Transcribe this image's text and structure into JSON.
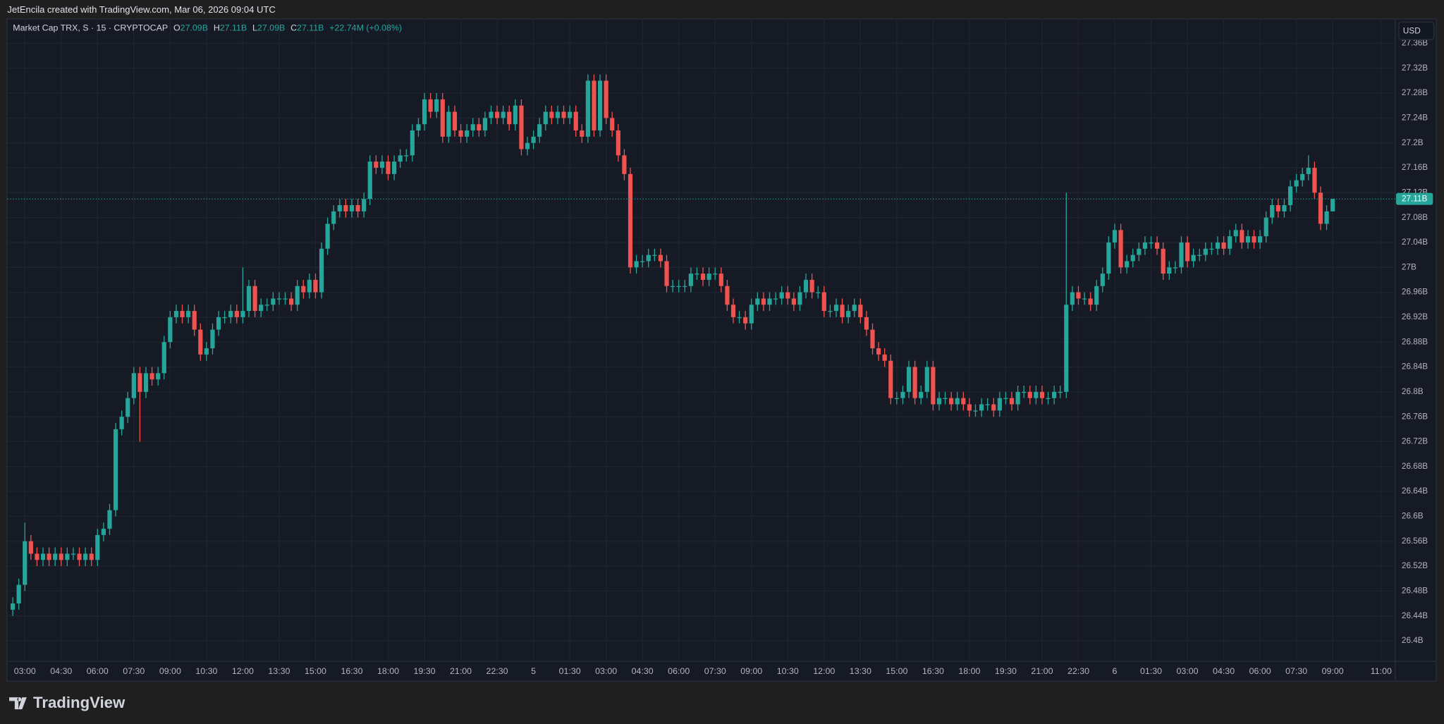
{
  "attribution": "JetEncila created with TradingView.com, Mar 06, 2026 09:04 UTC",
  "footer": {
    "brand": "TradingView"
  },
  "chart_data": {
    "type": "candlestick",
    "legend": {
      "title": "Market Cap TRX, S · 15 · CRYPTOCAP",
      "open_label": "O",
      "open": "27.09B",
      "high_label": "H",
      "high": "27.11B",
      "low_label": "L",
      "low": "27.09B",
      "close_label": "C",
      "close": "27.11B",
      "change": "+22.74M (+0.08%)"
    },
    "currency": "USD",
    "up_color": "#26a69a",
    "down_color": "#ef5350",
    "grid": true,
    "last_price": {
      "value": 27.11,
      "label": "27.11B"
    },
    "xlim": [
      2.278,
      59.58
    ],
    "ylim": [
      26.367,
      27.4
    ],
    "yticks": [
      {
        "value": 27.36,
        "label": "27.36B"
      },
      {
        "value": 27.32,
        "label": "27.32B"
      },
      {
        "value": 27.28,
        "label": "27.28B"
      },
      {
        "value": 27.24,
        "label": "27.24B"
      },
      {
        "value": 27.2,
        "label": "27.2B"
      },
      {
        "value": 27.16,
        "label": "27.16B"
      },
      {
        "value": 27.12,
        "label": "27.12B"
      },
      {
        "value": 27.08,
        "label": "27.08B"
      },
      {
        "value": 27.04,
        "label": "27.04B"
      },
      {
        "value": 27,
        "label": "27B"
      },
      {
        "value": 26.96,
        "label": "26.96B"
      },
      {
        "value": 26.92,
        "label": "26.92B"
      },
      {
        "value": 26.88,
        "label": "26.88B"
      },
      {
        "value": 26.84,
        "label": "26.84B"
      },
      {
        "value": 26.8,
        "label": "26.8B"
      },
      {
        "value": 26.76,
        "label": "26.76B"
      },
      {
        "value": 26.72,
        "label": "26.72B"
      },
      {
        "value": 26.68,
        "label": "26.68B"
      },
      {
        "value": 26.64,
        "label": "26.64B"
      },
      {
        "value": 26.6,
        "label": "26.6B"
      },
      {
        "value": 26.56,
        "label": "26.56B"
      },
      {
        "value": 26.52,
        "label": "26.52B"
      },
      {
        "value": 26.48,
        "label": "26.48B"
      },
      {
        "value": 26.44,
        "label": "26.44B"
      },
      {
        "value": 26.4,
        "label": "26.4B"
      }
    ],
    "xticks": [
      {
        "value": 3,
        "label": "03:00"
      },
      {
        "value": 4.5,
        "label": "04:30"
      },
      {
        "value": 6,
        "label": "06:00"
      },
      {
        "value": 7.5,
        "label": "07:30"
      },
      {
        "value": 9,
        "label": "09:00"
      },
      {
        "value": 10.5,
        "label": "10:30"
      },
      {
        "value": 12,
        "label": "12:00"
      },
      {
        "value": 13.5,
        "label": "13:30"
      },
      {
        "value": 15,
        "label": "15:00"
      },
      {
        "value": 16.5,
        "label": "16:30"
      },
      {
        "value": 18,
        "label": "18:00"
      },
      {
        "value": 19.5,
        "label": "19:30"
      },
      {
        "value": 21,
        "label": "21:00"
      },
      {
        "value": 22.5,
        "label": "22:30"
      },
      {
        "value": 24,
        "label": "5"
      },
      {
        "value": 25.5,
        "label": "01:30"
      },
      {
        "value": 27,
        "label": "03:00"
      },
      {
        "value": 28.5,
        "label": "04:30"
      },
      {
        "value": 30,
        "label": "06:00"
      },
      {
        "value": 31.5,
        "label": "07:30"
      },
      {
        "value": 33,
        "label": "09:00"
      },
      {
        "value": 34.5,
        "label": "10:30"
      },
      {
        "value": 36,
        "label": "12:00"
      },
      {
        "value": 37.5,
        "label": "13:30"
      },
      {
        "value": 39,
        "label": "15:00"
      },
      {
        "value": 40.5,
        "label": "16:30"
      },
      {
        "value": 42,
        "label": "18:00"
      },
      {
        "value": 43.5,
        "label": "19:30"
      },
      {
        "value": 45,
        "label": "21:00"
      },
      {
        "value": 46.5,
        "label": "22:30"
      },
      {
        "value": 48,
        "label": "6"
      },
      {
        "value": 49.5,
        "label": "01:30"
      },
      {
        "value": 51,
        "label": "03:00"
      },
      {
        "value": 52.5,
        "label": "04:30"
      },
      {
        "value": 54,
        "label": "06:00"
      },
      {
        "value": 55.5,
        "label": "07:30"
      },
      {
        "value": 57,
        "label": "09:00"
      },
      {
        "value": 59,
        "label": "11:00"
      }
    ],
    "x": [
      2.5,
      2.75,
      3,
      3.25,
      3.5,
      3.75,
      4,
      4.25,
      4.5,
      4.75,
      5,
      5.25,
      5.5,
      5.75,
      6,
      6.25,
      6.5,
      6.75,
      7,
      7.25,
      7.5,
      7.75,
      8,
      8.25,
      8.5,
      8.75,
      9,
      9.25,
      9.5,
      9.75,
      10,
      10.25,
      10.5,
      10.75,
      11,
      11.25,
      11.5,
      11.75,
      12,
      12.25,
      12.5,
      12.75,
      13,
      13.25,
      13.5,
      13.75,
      14,
      14.25,
      14.5,
      14.75,
      15,
      15.25,
      15.5,
      15.75,
      16,
      16.25,
      16.5,
      16.75,
      17,
      17.25,
      17.5,
      17.75,
      18,
      18.25,
      18.5,
      18.75,
      19,
      19.25,
      19.5,
      19.75,
      20,
      20.25,
      20.5,
      20.75,
      21,
      21.25,
      21.5,
      21.75,
      22,
      22.25,
      22.5,
      22.75,
      23,
      23.25,
      23.5,
      23.75,
      24,
      24.25,
      24.5,
      24.75,
      25,
      25.25,
      25.5,
      25.75,
      26,
      26.25,
      26.5,
      26.75,
      27,
      27.25,
      27.5,
      27.75,
      28,
      28.25,
      28.5,
      28.75,
      29,
      29.25,
      29.5,
      29.75,
      30,
      30.25,
      30.5,
      30.75,
      31,
      31.25,
      31.5,
      31.75,
      32,
      32.25,
      32.5,
      32.75,
      33,
      33.25,
      33.5,
      33.75,
      34,
      34.25,
      34.5,
      34.75,
      35,
      35.25,
      35.5,
      35.75,
      36,
      36.25,
      36.5,
      36.75,
      37,
      37.25,
      37.5,
      37.75,
      38,
      38.25,
      38.5,
      38.75,
      39,
      39.25,
      39.5,
      39.75,
      40,
      40.25,
      40.5,
      40.75,
      41,
      41.25,
      41.5,
      41.75,
      42,
      42.25,
      42.5,
      42.75,
      43,
      43.25,
      43.5,
      43.75,
      44,
      44.25,
      44.5,
      44.75,
      45,
      45.25,
      45.5,
      45.75,
      46,
      46.25,
      46.5,
      46.75,
      47,
      47.25,
      47.5,
      47.75,
      48,
      48.25,
      48.5,
      48.75,
      49,
      49.25,
      49.5,
      49.75,
      50,
      50.25,
      50.5,
      50.75,
      51,
      51.25,
      51.5,
      51.75,
      52,
      52.25,
      52.5,
      52.75,
      53,
      53.25,
      53.5,
      53.75,
      54,
      54.25,
      54.5,
      54.75,
      55,
      55.25,
      55.5,
      55.75,
      56,
      56.25,
      56.5,
      56.75,
      57
    ],
    "open": [
      26.45,
      26.46,
      26.49,
      26.56,
      26.54,
      26.53,
      26.54,
      26.53,
      26.54,
      26.53,
      26.54,
      26.54,
      26.53,
      26.54,
      26.53,
      26.57,
      26.58,
      26.61,
      26.74,
      26.76,
      26.79,
      26.83,
      26.8,
      26.83,
      26.82,
      26.83,
      26.88,
      26.92,
      26.93,
      26.92,
      26.93,
      26.9,
      26.86,
      26.87,
      26.9,
      26.92,
      26.92,
      26.93,
      26.92,
      26.93,
      26.97,
      26.93,
      26.94,
      26.94,
      26.95,
      26.95,
      26.95,
      26.94,
      26.97,
      26.96,
      26.98,
      26.96,
      27.03,
      27.07,
      27.09,
      27.1,
      27.09,
      27.1,
      27.09,
      27.11,
      27.17,
      27.16,
      27.17,
      27.15,
      27.17,
      27.18,
      27.18,
      27.22,
      27.23,
      27.27,
      27.25,
      27.27,
      27.21,
      27.25,
      27.22,
      27.21,
      27.22,
      27.23,
      27.22,
      27.24,
      27.25,
      27.24,
      27.25,
      27.23,
      27.26,
      27.19,
      27.2,
      27.21,
      27.23,
      27.25,
      27.24,
      27.25,
      27.24,
      27.25,
      27.22,
      27.21,
      27.3,
      27.22,
      27.3,
      27.24,
      27.22,
      27.18,
      27.15,
      27.0,
      27.01,
      27.01,
      27.02,
      27.02,
      27.01,
      26.97,
      26.97,
      26.97,
      26.97,
      26.99,
      26.99,
      26.98,
      26.99,
      26.99,
      26.97,
      26.94,
      26.92,
      26.92,
      26.91,
      26.94,
      26.95,
      26.94,
      26.95,
      26.95,
      26.96,
      26.95,
      26.94,
      26.96,
      26.98,
      26.96,
      26.96,
      26.93,
      26.93,
      26.94,
      26.92,
      26.93,
      26.94,
      26.92,
      26.9,
      26.87,
      26.86,
      26.85,
      26.79,
      26.79,
      26.8,
      26.84,
      26.79,
      26.8,
      26.84,
      26.78,
      26.79,
      26.79,
      26.78,
      26.79,
      26.78,
      26.77,
      26.77,
      26.78,
      26.78,
      26.77,
      26.79,
      26.79,
      26.78,
      26.8,
      26.8,
      26.79,
      26.8,
      26.79,
      26.79,
      26.8,
      26.8,
      26.94,
      26.96,
      26.95,
      26.95,
      26.94,
      26.97,
      26.99,
      27.04,
      27.06,
      27.0,
      27.01,
      27.02,
      27.03,
      27.04,
      27.04,
      27.03,
      26.99,
      27.0,
      27.0,
      27.04,
      27.01,
      27.02,
      27.02,
      27.03,
      27.03,
      27.04,
      27.03,
      27.05,
      27.06,
      27.04,
      27.05,
      27.04,
      27.05,
      27.08,
      27.1,
      27.09,
      27.1,
      27.13,
      27.14,
      27.15,
      27.16,
      27.12,
      27.07,
      27.09
    ],
    "high": [
      26.47,
      26.5,
      26.59,
      26.57,
      26.55,
      26.55,
      26.55,
      26.55,
      26.55,
      26.55,
      26.55,
      26.55,
      26.55,
      26.55,
      26.58,
      26.59,
      26.62,
      26.75,
      26.77,
      26.8,
      26.84,
      26.84,
      26.84,
      26.84,
      26.84,
      26.89,
      26.93,
      26.94,
      26.94,
      26.94,
      26.94,
      26.91,
      26.88,
      26.91,
      26.93,
      26.93,
      26.94,
      26.94,
      27.0,
      26.98,
      26.98,
      26.95,
      26.95,
      26.96,
      26.96,
      26.96,
      26.96,
      26.98,
      26.98,
      26.99,
      26.99,
      27.04,
      27.08,
      27.1,
      27.11,
      27.11,
      27.11,
      27.11,
      27.12,
      27.18,
      27.18,
      27.18,
      27.18,
      27.18,
      27.19,
      27.19,
      27.23,
      27.24,
      27.28,
      27.28,
      27.28,
      27.28,
      27.26,
      27.26,
      27.23,
      27.23,
      27.24,
      27.24,
      27.25,
      27.26,
      27.26,
      27.26,
      27.26,
      27.27,
      27.27,
      27.21,
      27.22,
      27.24,
      27.26,
      27.26,
      27.26,
      27.26,
      27.26,
      27.26,
      27.23,
      27.31,
      27.31,
      27.31,
      27.31,
      27.25,
      27.23,
      27.19,
      27.16,
      27.02,
      27.02,
      27.03,
      27.03,
      27.03,
      27.02,
      26.98,
      26.98,
      26.98,
      27.0,
      27.0,
      27.0,
      27.0,
      27.0,
      27.0,
      26.98,
      26.95,
      26.93,
      26.93,
      26.95,
      26.96,
      26.96,
      26.96,
      26.96,
      26.97,
      26.97,
      26.96,
      26.97,
      26.99,
      26.99,
      26.97,
      26.97,
      26.94,
      26.95,
      26.95,
      26.94,
      26.95,
      26.95,
      26.93,
      26.91,
      26.88,
      26.87,
      26.86,
      26.8,
      26.81,
      26.85,
      26.85,
      26.81,
      26.85,
      26.85,
      26.8,
      26.8,
      26.8,
      26.8,
      26.8,
      26.79,
      26.78,
      26.79,
      26.79,
      26.79,
      26.8,
      26.8,
      26.8,
      26.81,
      26.81,
      26.81,
      26.81,
      26.81,
      26.8,
      26.81,
      26.81,
      27.12,
      26.97,
      26.97,
      26.96,
      26.96,
      26.98,
      27.0,
      27.05,
      27.07,
      27.07,
      27.02,
      27.03,
      27.04,
      27.05,
      27.05,
      27.05,
      27.04,
      27.01,
      27.01,
      27.05,
      27.05,
      27.03,
      27.03,
      27.04,
      27.04,
      27.05,
      27.05,
      27.06,
      27.07,
      27.07,
      27.06,
      27.06,
      27.06,
      27.09,
      27.11,
      27.11,
      27.11,
      27.14,
      27.15,
      27.16,
      27.18,
      27.17,
      27.13,
      27.1,
      27.11
    ],
    "low": [
      26.44,
      26.45,
      26.48,
      26.53,
      26.52,
      26.52,
      26.52,
      26.52,
      26.52,
      26.52,
      26.53,
      26.52,
      26.52,
      26.52,
      26.52,
      26.56,
      26.57,
      26.6,
      26.73,
      26.75,
      26.78,
      26.72,
      26.79,
      26.81,
      26.81,
      26.82,
      26.87,
      26.91,
      26.91,
      26.91,
      26.89,
      26.85,
      26.85,
      26.86,
      26.89,
      26.91,
      26.91,
      26.91,
      26.91,
      26.92,
      26.92,
      26.92,
      26.93,
      26.93,
      26.94,
      26.94,
      26.93,
      26.93,
      26.95,
      26.95,
      26.95,
      26.95,
      27.02,
      27.06,
      27.08,
      27.08,
      27.08,
      27.08,
      27.08,
      27.1,
      27.15,
      27.15,
      27.14,
      27.14,
      27.16,
      27.17,
      27.17,
      27.21,
      27.22,
      27.24,
      27.24,
      27.2,
      27.2,
      27.21,
      27.2,
      27.2,
      27.21,
      27.21,
      27.21,
      27.23,
      27.23,
      27.23,
      27.22,
      27.22,
      27.18,
      27.18,
      27.19,
      27.2,
      27.22,
      27.23,
      27.23,
      27.23,
      27.23,
      27.21,
      27.2,
      27.2,
      27.21,
      27.21,
      27.23,
      27.21,
      27.17,
      27.14,
      26.99,
      26.99,
      27.0,
      27.0,
      27.01,
      27.0,
      26.96,
      26.96,
      26.96,
      26.96,
      26.96,
      26.98,
      26.97,
      26.97,
      26.98,
      26.96,
      26.93,
      26.91,
      26.91,
      26.9,
      26.9,
      26.93,
      26.93,
      26.93,
      26.94,
      26.94,
      26.94,
      26.93,
      26.93,
      26.95,
      26.95,
      26.95,
      26.92,
      26.92,
      26.92,
      26.91,
      26.91,
      26.92,
      26.91,
      26.89,
      26.86,
      26.85,
      26.84,
      26.78,
      26.78,
      26.78,
      26.79,
      26.78,
      26.78,
      26.79,
      26.77,
      26.77,
      26.78,
      26.77,
      26.77,
      26.77,
      26.76,
      26.76,
      26.76,
      26.77,
      26.76,
      26.76,
      26.78,
      26.77,
      26.77,
      26.79,
      26.78,
      26.78,
      26.78,
      26.78,
      26.78,
      26.79,
      26.79,
      26.93,
      26.94,
      26.94,
      26.93,
      26.93,
      26.96,
      26.98,
      27.03,
      26.99,
      26.99,
      27.0,
      27.01,
      27.02,
      27.03,
      27.02,
      26.98,
      26.98,
      26.99,
      26.99,
      27.0,
      27.0,
      27.01,
      27.01,
      27.02,
      27.02,
      27.02,
      27.02,
      27.04,
      27.03,
      27.03,
      27.03,
      27.03,
      27.04,
      27.07,
      27.08,
      27.08,
      27.09,
      27.12,
      27.13,
      27.14,
      27.11,
      27.06,
      27.06,
      27.09
    ],
    "close": [
      26.46,
      26.49,
      26.56,
      26.54,
      26.53,
      26.54,
      26.53,
      26.54,
      26.53,
      26.54,
      26.54,
      26.53,
      26.54,
      26.53,
      26.57,
      26.58,
      26.61,
      26.74,
      26.76,
      26.79,
      26.83,
      26.8,
      26.83,
      26.82,
      26.83,
      26.88,
      26.92,
      26.93,
      26.92,
      26.93,
      26.9,
      26.86,
      26.87,
      26.9,
      26.92,
      26.92,
      26.93,
      26.92,
      26.93,
      26.97,
      26.93,
      26.94,
      26.94,
      26.95,
      26.95,
      26.95,
      26.94,
      26.97,
      26.96,
      26.98,
      26.96,
      27.03,
      27.07,
      27.09,
      27.1,
      27.09,
      27.1,
      27.09,
      27.11,
      27.17,
      27.16,
      27.17,
      27.15,
      27.17,
      27.18,
      27.18,
      27.22,
      27.23,
      27.27,
      27.25,
      27.27,
      27.21,
      27.25,
      27.22,
      27.21,
      27.22,
      27.23,
      27.22,
      27.24,
      27.25,
      27.24,
      27.25,
      27.23,
      27.26,
      27.19,
      27.2,
      27.21,
      27.23,
      27.25,
      27.24,
      27.25,
      27.24,
      27.25,
      27.22,
      27.21,
      27.3,
      27.22,
      27.3,
      27.24,
      27.22,
      27.18,
      27.15,
      27.0,
      27.01,
      27.01,
      27.02,
      27.02,
      27.01,
      26.97,
      26.97,
      26.97,
      26.97,
      26.99,
      26.99,
      26.98,
      26.99,
      26.99,
      26.97,
      26.94,
      26.92,
      26.92,
      26.91,
      26.94,
      26.95,
      26.94,
      26.95,
      26.95,
      26.96,
      26.95,
      26.94,
      26.96,
      26.98,
      26.96,
      26.96,
      26.93,
      26.93,
      26.94,
      26.92,
      26.93,
      26.94,
      26.92,
      26.9,
      26.87,
      26.86,
      26.85,
      26.79,
      26.79,
      26.8,
      26.84,
      26.79,
      26.8,
      26.84,
      26.78,
      26.79,
      26.79,
      26.78,
      26.79,
      26.78,
      26.77,
      26.77,
      26.78,
      26.78,
      26.77,
      26.79,
      26.79,
      26.78,
      26.8,
      26.8,
      26.79,
      26.8,
      26.79,
      26.79,
      26.8,
      26.8,
      26.94,
      26.96,
      26.95,
      26.95,
      26.94,
      26.97,
      26.99,
      27.04,
      27.06,
      27.0,
      27.01,
      27.02,
      27.03,
      27.04,
      27.04,
      27.03,
      26.99,
      27.0,
      27.0,
      27.04,
      27.01,
      27.02,
      27.02,
      27.03,
      27.03,
      27.04,
      27.03,
      27.05,
      27.06,
      27.04,
      27.05,
      27.04,
      27.05,
      27.08,
      27.1,
      27.09,
      27.1,
      27.13,
      27.14,
      27.15,
      27.16,
      27.12,
      27.07,
      27.09,
      27.11
    ]
  }
}
